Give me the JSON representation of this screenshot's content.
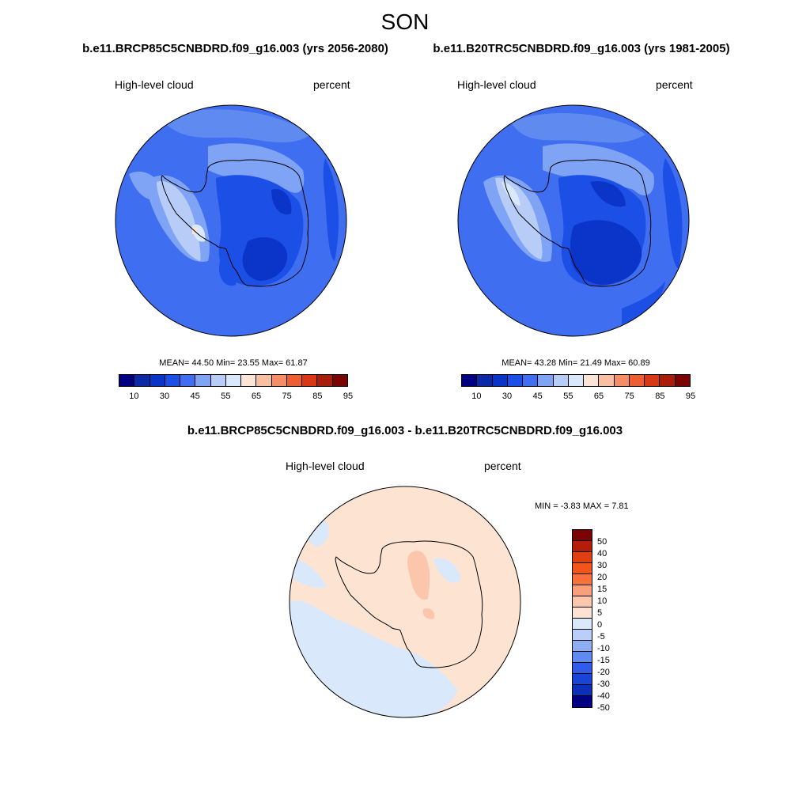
{
  "title": "SON",
  "panels": [
    {
      "case_title": "b.e11.BRCP85C5CNBDRD.f09_g16.003 (yrs 2056-2080)",
      "variable": "High-level cloud",
      "units": "percent",
      "stats_text": "MEAN=  44.50  Min=  23.55  Max=  61.87"
    },
    {
      "case_title": "b.e11.B20TRC5CNBDRD.f09_g16.003 (yrs 1981-2005)",
      "variable": "High-level cloud",
      "units": "percent",
      "stats_text": "MEAN=  43.28  Min=  21.49  Max=  60.89"
    }
  ],
  "diff_panel": {
    "case_title": "b.e11.BRCP85C5CNBDRD.f09_g16.003 - b.e11.B20TRC5CNBDRD.f09_g16.003",
    "variable": "High-level cloud",
    "units": "percent",
    "stats_text": "MIN =  -3.83 MAX =   7.81"
  },
  "colorbar": {
    "colors": [
      "#000080",
      "#0d2aa6",
      "#0a35c8",
      "#1c4fe6",
      "#3f6ef0",
      "#7fa3f5",
      "#b7cdf8",
      "#d9e8fb",
      "#fce5d6",
      "#f9bfa3",
      "#f58e66",
      "#ef5d33",
      "#d93816",
      "#a81e0b",
      "#7a0404"
    ],
    "labels": [
      "10",
      "30",
      "45",
      "55",
      "65",
      "75",
      "85",
      "95"
    ]
  },
  "diff_colorbar": {
    "colors": [
      "#7a0404",
      "#b41d0a",
      "#e03f12",
      "#f2541c",
      "#f7713d",
      "#f9a07a",
      "#fbc6ab",
      "#fde4d2",
      "#d9e8fb",
      "#b9cef8",
      "#8eaef4",
      "#5f8af0",
      "#2f5ce8",
      "#1a43d8",
      "#0c2fba",
      "#000080"
    ],
    "labels": [
      "50",
      "40",
      "30",
      "20",
      "15",
      "10",
      "5",
      "0",
      "-5",
      "-10",
      "-15",
      "-20",
      "-30",
      "-40",
      "-50"
    ]
  }
}
